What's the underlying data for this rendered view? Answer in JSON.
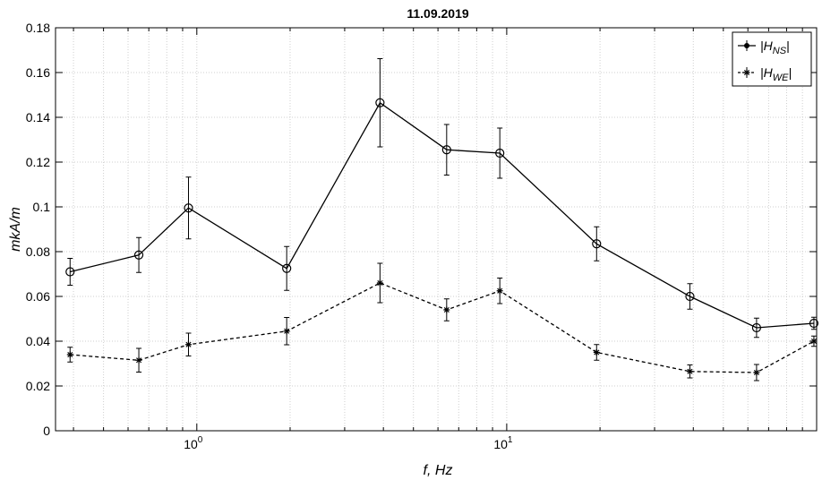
{
  "chart_data": {
    "type": "line",
    "title": "11.09.2019",
    "xlabel": "f, Hz",
    "ylabel": "mkA/m",
    "x_scale": "log",
    "xlim": [
      0.35,
      100
    ],
    "ylim": [
      0,
      0.18
    ],
    "y_ticks": [
      "0",
      "0.02",
      "0.04",
      "0.06",
      "0.08",
      "0.1",
      "0.12",
      "0.14",
      "0.16",
      "0.18"
    ],
    "x_tick_labels": [
      {
        "base": "10",
        "exp": "0",
        "value": 1
      },
      {
        "base": "10",
        "exp": "1",
        "value": 10
      }
    ],
    "grid": true,
    "legend_position": "top-right",
    "x": [
      0.39,
      0.65,
      0.94,
      1.95,
      3.9,
      6.4,
      9.5,
      19.5,
      39,
      64,
      98
    ],
    "series": [
      {
        "name": "|H_NS|",
        "name_base": "|H",
        "name_sub": "NS",
        "name_end": "|",
        "marker": "circle",
        "line_style": "solid",
        "color": "#000000",
        "values": [
          0.071,
          0.0785,
          0.0995,
          0.0725,
          0.1465,
          0.1255,
          0.124,
          0.0835,
          0.06,
          0.046,
          0.048
        ],
        "errors": [
          0.006,
          0.0078,
          0.0138,
          0.0098,
          0.0197,
          0.0113,
          0.0112,
          0.0076,
          0.0057,
          0.0043,
          0.0027
        ]
      },
      {
        "name": "|H_WE|",
        "name_base": "|H",
        "name_sub": "WE",
        "name_end": "|",
        "marker": "star",
        "line_style": "dashed",
        "color": "#000000",
        "values": [
          0.034,
          0.0315,
          0.0385,
          0.0445,
          0.066,
          0.054,
          0.0625,
          0.035,
          0.0265,
          0.026,
          0.04
        ],
        "errors": [
          0.0033,
          0.0053,
          0.0051,
          0.0061,
          0.0088,
          0.0049,
          0.0057,
          0.0035,
          0.0029,
          0.0036,
          0.0023
        ]
      }
    ]
  }
}
